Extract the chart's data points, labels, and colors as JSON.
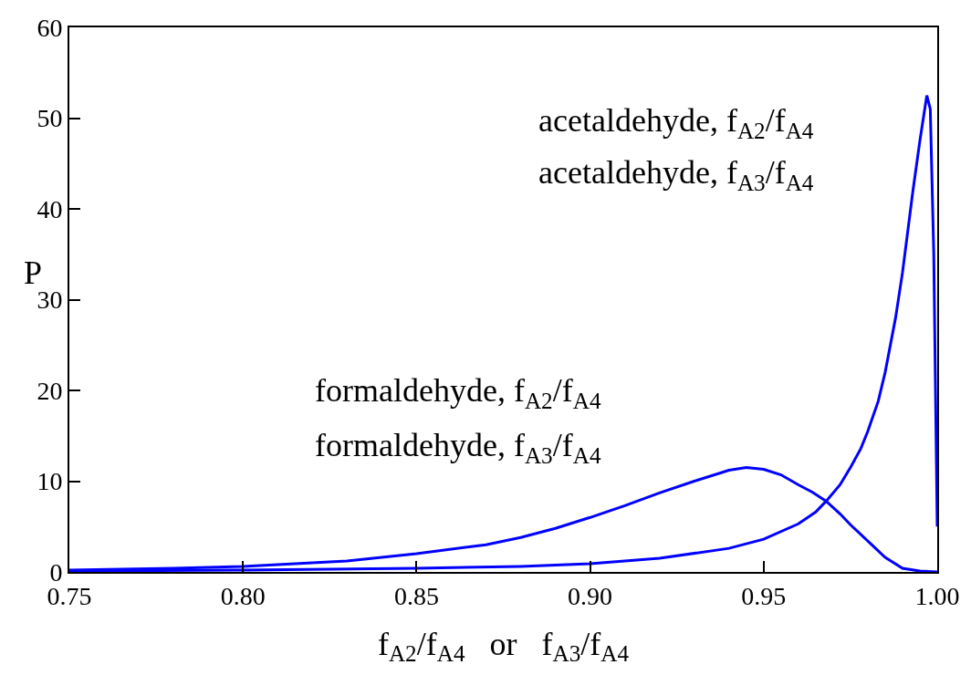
{
  "chart_data": {
    "type": "line",
    "xlabel": "f$_{A2}$/f$_{A4}$   or   f$_{A3}$/f$_{A4}$",
    "ylabel": "P",
    "annotations": [
      "acetaldehyde, f$_{A2}$/f$_{A4}$",
      "acetaldehyde, f$_{A3}$/f$_{A4}$",
      "formaldehyde, f$_{A2}$/f$_{A4}$",
      "formaldehyde, f$_{A3}$/f$_{A4}$"
    ],
    "series": [
      {
        "color": "#0000ff",
        "x": [
          0.75,
          0.78,
          0.8,
          0.83,
          0.85,
          0.87,
          0.88,
          0.89,
          0.9,
          0.91,
          0.92,
          0.93,
          0.94,
          0.945,
          0.95,
          0.955,
          0.96,
          0.964,
          0.968,
          0.972,
          0.975,
          0.98,
          0.985,
          0.99,
          0.995,
          1.0
        ],
        "values": [
          0.2,
          0.4,
          0.6,
          1.2,
          2.0,
          3.0,
          3.8,
          4.8,
          6.0,
          7.3,
          8.7,
          10.0,
          11.2,
          11.5,
          11.3,
          10.7,
          9.6,
          8.8,
          7.8,
          6.4,
          5.2,
          3.4,
          1.6,
          0.4,
          0.1,
          0
        ]
      },
      {
        "color": "#0000ff",
        "x": [
          0.75,
          0.8,
          0.85,
          0.88,
          0.9,
          0.92,
          0.94,
          0.95,
          0.96,
          0.965,
          0.968,
          0.972,
          0.975,
          0.978,
          0.98,
          0.983,
          0.985,
          0.988,
          0.99,
          0.993,
          0.995,
          0.996,
          0.997,
          0.998,
          0.999,
          1.0
        ],
        "values": [
          0.1,
          0.2,
          0.4,
          0.6,
          0.9,
          1.5,
          2.6,
          3.6,
          5.3,
          6.6,
          7.8,
          9.6,
          11.5,
          13.6,
          15.5,
          18.8,
          22,
          28,
          33,
          42,
          47.5,
          50,
          52.5,
          51,
          35,
          5
        ]
      }
    ],
    "xlim": [
      0.75,
      1.0
    ],
    "xticks": [
      0.75,
      {
        "value": 0.8,
        "label": "0.80"
      },
      0.85,
      {
        "value": 0.9,
        "label": "0.90"
      },
      0.95,
      {
        "value": 1.0,
        "label": "1.00"
      }
    ],
    "ylim": [
      0,
      60
    ],
    "yticks": [
      0,
      10,
      20,
      30,
      40,
      50,
      60
    ],
    "marker": "none",
    "line_style": "solid"
  }
}
